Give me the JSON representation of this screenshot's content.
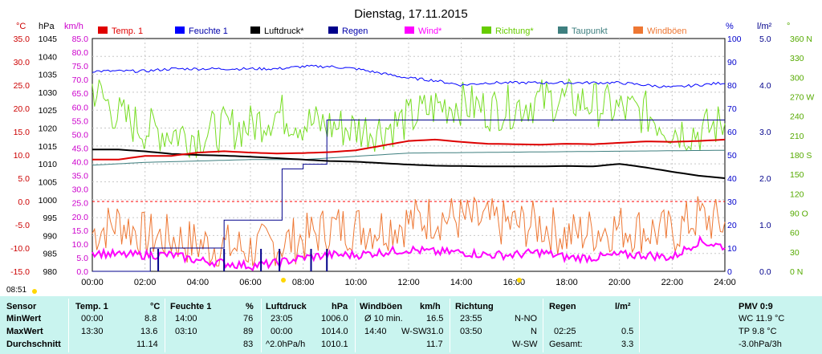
{
  "chart_data": {
    "type": "line",
    "title": "Dienstag, 17.11.2015",
    "x": [
      "00:00",
      "02:00",
      "04:00",
      "06:00",
      "08:00",
      "10:00",
      "12:00",
      "14:00",
      "16:00",
      "18:00",
      "20:00",
      "22:00",
      "24:00"
    ],
    "axes": {
      "temp": {
        "unit": "°C",
        "ticks": [
          "35.0",
          "30.0",
          "25.0",
          "20.0",
          "15.0",
          "10.0",
          "5.0",
          "0.0",
          "-5.0",
          "-10.0",
          "-15.0"
        ],
        "range": [
          -15,
          35
        ]
      },
      "pressure": {
        "unit": "hPa",
        "ticks": [
          "1045",
          "1040",
          "1035",
          "1030",
          "1025",
          "1020",
          "1015",
          "1010",
          "1005",
          "1000",
          "995",
          "990",
          "985",
          "980"
        ],
        "range": [
          980,
          1045
        ]
      },
      "wind": {
        "unit": "km/h",
        "ticks": [
          "85.0",
          "80.0",
          "75.0",
          "70.0",
          "65.0",
          "60.0",
          "55.0",
          "50.0",
          "45.0",
          "40.0",
          "35.0",
          "30.0",
          "25.0",
          "20.0",
          "15.0",
          "10.0",
          "5.0",
          "0.0"
        ],
        "range": [
          0,
          85
        ]
      },
      "humidity": {
        "unit": "%",
        "ticks": [
          "100",
          "90",
          "80",
          "70",
          "60",
          "50",
          "40",
          "30",
          "20",
          "10",
          "0"
        ],
        "range": [
          0,
          100
        ]
      },
      "rain": {
        "unit": "l/m²",
        "ticks": [
          "5.0",
          "4.0",
          "3.0",
          "2.0",
          "1.0",
          "0.0"
        ],
        "range": [
          0,
          5
        ]
      },
      "direction": {
        "unit": "°",
        "ticks": [
          "360 N",
          "330",
          "300",
          "270 W",
          "240",
          "210",
          "180 S",
          "150",
          "120",
          "90 O",
          "60",
          "30",
          "0 N"
        ],
        "range": [
          0,
          360
        ]
      }
    },
    "legend": [
      {
        "name": "Temp. 1",
        "color": "#e00000"
      },
      {
        "name": "Feuchte 1",
        "color": "#0000ff"
      },
      {
        "name": "Luftdruck*",
        "color": "#000000"
      },
      {
        "name": "Regen",
        "color": "#00008b"
      },
      {
        "name": "Wind*",
        "color": "#ff00ff"
      },
      {
        "name": "Richtung*",
        "color": "#66cc00"
      },
      {
        "name": "Taupunkt",
        "color": "#3e7f7f"
      },
      {
        "name": "Windböen",
        "color": "#ee7733"
      }
    ],
    "series": [
      {
        "name": "Temp. 1",
        "axis": "temp",
        "x": [
          0,
          1,
          2,
          3,
          4,
          5,
          6,
          7,
          8,
          9,
          10,
          11,
          12,
          13,
          14,
          15,
          16,
          17,
          18,
          19,
          20,
          21,
          22,
          23,
          24
        ],
        "values": [
          9.0,
          9.0,
          9.8,
          9.8,
          10.5,
          10.8,
          10.5,
          10.3,
          10.4,
          10.6,
          11.0,
          12.0,
          13.0,
          13.3,
          12.8,
          12.4,
          12.3,
          12.2,
          12.4,
          12.3,
          12.6,
          12.9,
          12.8,
          13.0,
          13.3
        ]
      },
      {
        "name": "Feuchte 1",
        "axis": "humidity",
        "x": [
          0,
          1,
          2,
          3,
          4,
          5,
          6,
          7,
          8,
          9,
          10,
          11,
          12,
          13,
          14,
          15,
          16,
          17,
          18,
          19,
          20,
          21,
          22,
          23,
          24
        ],
        "values": [
          86,
          86,
          86,
          87,
          87,
          87,
          87,
          87,
          88,
          88,
          87,
          85,
          83,
          82,
          80,
          81,
          81,
          81,
          81,
          81,
          81,
          80,
          79,
          80,
          81
        ]
      },
      {
        "name": "Luftdruck*",
        "axis": "pressure",
        "x": [
          0,
          1,
          2,
          3,
          4,
          5,
          6,
          7,
          8,
          9,
          10,
          11,
          12,
          13,
          14,
          15,
          16,
          17,
          18,
          19,
          20,
          21,
          22,
          23,
          24
        ],
        "values": [
          1014.0,
          1014.0,
          1013.5,
          1012.8,
          1012.5,
          1012.3,
          1012.0,
          1011.6,
          1011.2,
          1010.8,
          1010.6,
          1010.2,
          1009.8,
          1009.5,
          1009.4,
          1009.3,
          1009.3,
          1009.3,
          1009.4,
          1009.3,
          1010.0,
          1009.0,
          1007.8,
          1006.7,
          1006.0
        ]
      },
      {
        "name": "Taupunkt",
        "axis": "temp",
        "x": [
          0,
          2,
          4,
          6,
          8,
          10,
          12,
          14,
          16,
          18,
          20,
          22,
          24
        ],
        "values": [
          7.8,
          8.4,
          8.7,
          9.0,
          9.0,
          9.7,
          10.4,
          10.5,
          10.6,
          10.7,
          10.8,
          10.9,
          11.0
        ]
      },
      {
        "name": "Regen",
        "axis": "rain",
        "x": [
          0,
          2.2,
          4,
          5.0,
          6.25,
          7.2,
          8.0,
          8.9,
          24
        ],
        "values": [
          0,
          0.5,
          0.5,
          1.1,
          1.1,
          2.2,
          2.3,
          3.25,
          3.25
        ]
      },
      {
        "name": "Wind*",
        "axis": "wind",
        "x": [
          0,
          1,
          2,
          3,
          4,
          5,
          6,
          7,
          8,
          9,
          10,
          11,
          12,
          13,
          14,
          15,
          16,
          17,
          18,
          19,
          20,
          21,
          22,
          23,
          24
        ],
        "values": [
          7,
          6,
          6,
          6,
          4,
          3,
          2,
          3,
          5,
          6,
          6,
          7,
          8,
          7,
          7,
          6,
          6,
          7,
          5,
          5,
          6,
          6,
          5,
          11,
          9
        ]
      },
      {
        "name": "Windböen",
        "axis": "wind",
        "x": [
          0,
          1,
          2,
          3,
          4,
          5,
          6,
          7,
          8,
          9,
          10,
          11,
          12,
          13,
          14,
          15,
          16,
          17,
          18,
          19,
          20,
          21,
          22,
          23,
          24
        ],
        "values": [
          14,
          18,
          13,
          12,
          10,
          9,
          8,
          10,
          12,
          16,
          16,
          16,
          18,
          20,
          19,
          18,
          17,
          17,
          13,
          15,
          16,
          15,
          14,
          20,
          17
        ]
      },
      {
        "name": "Richtung*",
        "axis": "direction",
        "x": [
          0,
          1,
          2,
          3,
          4,
          5,
          6,
          7,
          8,
          9,
          10,
          11,
          12,
          13,
          14,
          15,
          16,
          17,
          18,
          19,
          20,
          21,
          22,
          23,
          24
        ],
        "values": [
          285,
          240,
          220,
          215,
          210,
          220,
          225,
          245,
          230,
          225,
          220,
          220,
          235,
          255,
          260,
          250,
          255,
          265,
          265,
          260,
          250,
          245,
          220,
          215,
          230
        ]
      }
    ]
  },
  "ui": {
    "current_time": "08:51"
  },
  "table": {
    "row_labels": {
      "sensor": "Sensor",
      "min": "MinWert",
      "max": "MaxWert",
      "avg": "Durchschnitt"
    },
    "temp": {
      "h": "Temp. 1",
      "u": "°C",
      "min_t": "00:00",
      "min_v": "8.8",
      "max_t": "13:30",
      "max_v": "13.6",
      "avg": "11.14"
    },
    "hum": {
      "h": "Feuchte 1",
      "u": "%",
      "min_t": "14:00",
      "min_v": "76",
      "max_t": "03:10",
      "max_v": "89",
      "avg": "83"
    },
    "press": {
      "h": "Luftdruck",
      "u": "hPa",
      "min_t": "23:05",
      "min_v": "1006.0",
      "max_t": "00:00",
      "max_v": "1014.0",
      "avg_t": "^2.0hPa/h",
      "avg": "1010.1"
    },
    "gust": {
      "h": "Windböen",
      "u": "km/h",
      "min_t": "Ø 10 min.",
      "min_v": "16.5",
      "max_t": "14:40",
      "max_d": "W-SW",
      "max_v": "31.0",
      "avg": "11.7"
    },
    "dir": {
      "h": "Richtung",
      "min_t": "23:55",
      "min_v": "N-NO",
      "max_t": "03:50",
      "max_v": "N",
      "avg": "W-SW"
    },
    "rain": {
      "h": "Regen",
      "u": "l/m²",
      "max_t": "02:25",
      "max_v": "0.5",
      "avg_t": "Gesamt:",
      "avg": "3.3"
    },
    "pmv": {
      "h": "PMV 0:9",
      "l1": "WC 11.9 °C",
      "l2": "TP 9.8 °C",
      "l3": "-3.0hPa/3h"
    }
  }
}
